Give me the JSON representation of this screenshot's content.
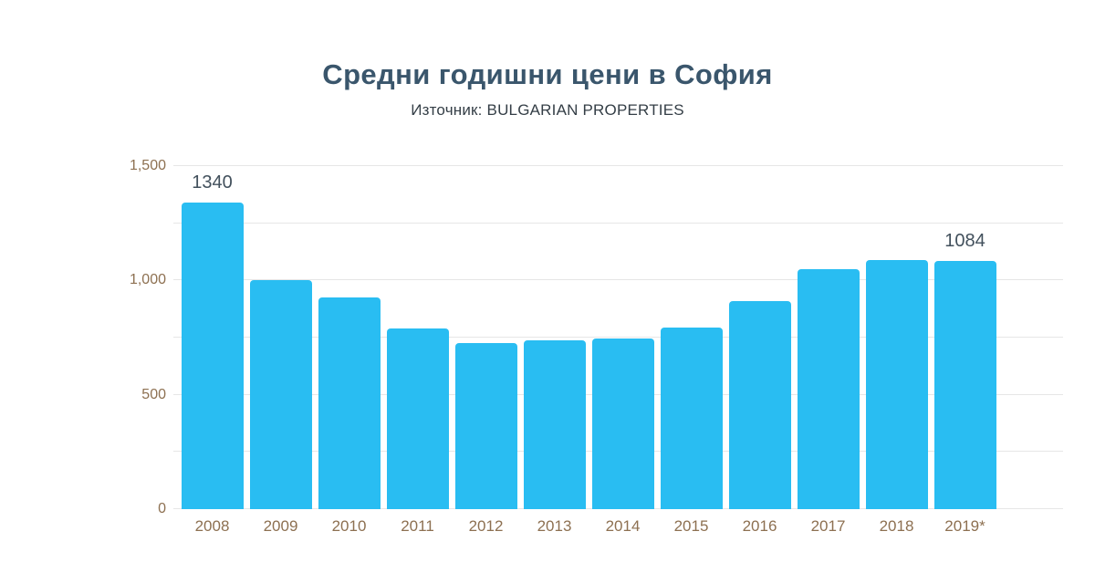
{
  "colors": {
    "bar": "#29bdf2",
    "title": "#3a566c",
    "subtitle": "#343e46",
    "axis": "#8d7051",
    "value": "#42505c",
    "grid": "#e6e6e6"
  },
  "chart_data": {
    "type": "bar",
    "title": "Средни годишни цени в София",
    "subtitle": "Източник: BULGARIAN PROPERTIES",
    "categories": [
      "2008",
      "2009",
      "2010",
      "2011",
      "2012",
      "2013",
      "2014",
      "2015",
      "2016",
      "2017",
      "2018",
      "2019*"
    ],
    "values": [
      1340,
      1000,
      925,
      790,
      725,
      740,
      745,
      795,
      910,
      1050,
      1090,
      1084
    ],
    "labels": [
      "1340",
      null,
      null,
      null,
      null,
      null,
      null,
      null,
      null,
      null,
      null,
      "1084"
    ],
    "xlabel": "",
    "ylabel": "",
    "ylim": [
      0,
      1500
    ],
    "gridline_step": 250,
    "yticks": [
      0,
      500,
      1000,
      1500
    ],
    "ytick_labels": [
      "0",
      "500",
      "1,000",
      "1,500"
    ],
    "grid": true,
    "legend": false
  }
}
